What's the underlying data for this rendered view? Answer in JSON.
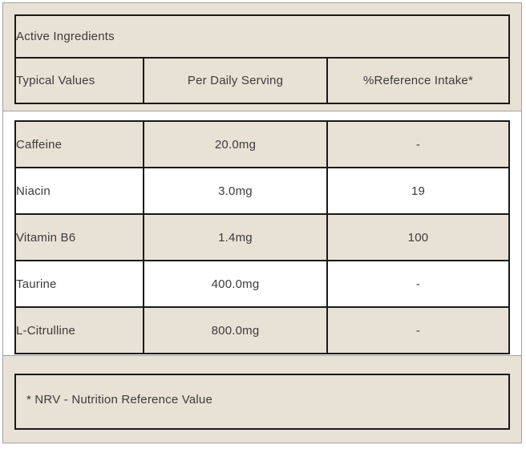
{
  "panel": {
    "title": "Active Ingredients",
    "columns": [
      "Typical Values",
      "Per Daily Serving",
      "%Reference Intake*"
    ],
    "rows": [
      {
        "name": "Caffeine",
        "per_daily_serving": "20.0mg",
        "reference_intake": "-"
      },
      {
        "name": "Niacin",
        "per_daily_serving": "3.0mg",
        "reference_intake": "19"
      },
      {
        "name": "Vitamin B6",
        "per_daily_serving": "1.4mg",
        "reference_intake": "100"
      },
      {
        "name": "Taurine",
        "per_daily_serving": "400.0mg",
        "reference_intake": "-"
      },
      {
        "name": "L-Citrulline",
        "per_daily_serving": "800.0mg",
        "reference_intake": "-"
      }
    ],
    "footnote": "* NRV - Nutrition Reference Value"
  },
  "colors": {
    "beige": "#e8e1d5",
    "row_alt": "#ffffff",
    "border_dark": "#191919",
    "border_grey": "#a2a2a2",
    "text": "#3c3c3c"
  }
}
